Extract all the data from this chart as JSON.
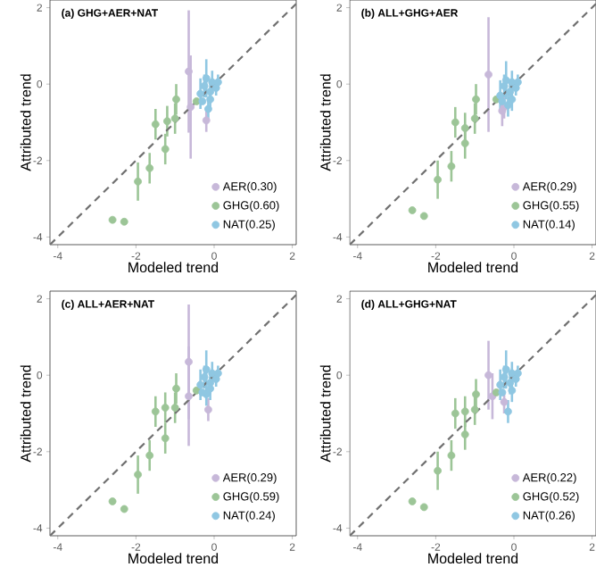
{
  "chart_data": [
    {
      "type": "scatter",
      "title": "(a) GHG+AER+NAT",
      "xlabel": "Modeled trend",
      "ylabel": "Attributed trend",
      "xlim": [
        -4.2,
        2.1
      ],
      "ylim": [
        -4.2,
        2.2
      ],
      "xticks": [
        -4,
        -2,
        0,
        2
      ],
      "yticks": [
        -4,
        -2,
        0,
        2
      ],
      "legend": "bottom right",
      "series": [
        {
          "type": "line",
          "color": "#707070",
          "line_style": "dashed",
          "marker": "none",
          "x": [
            -4.2,
            2.1
          ],
          "values": [
            -4.2,
            2.1
          ]
        },
        {
          "name": "AER(0.30)",
          "marker": "circle",
          "color": "#c7b8d9",
          "x": [
            -0.65,
            -0.6,
            -0.2
          ],
          "values": [
            0.33,
            -0.6,
            -0.95
          ],
          "errors": [
            1.6,
            1.35,
            0.3
          ]
        },
        {
          "name": "GHG(0.60)",
          "marker": "circle",
          "color": "#9cc597",
          "x": [
            -2.6,
            -2.3,
            -1.95,
            -1.65,
            -1.25,
            -1.5,
            -1.2,
            -1.0,
            -0.97,
            -0.45
          ],
          "values": [
            -3.55,
            -3.6,
            -2.55,
            -2.2,
            -1.7,
            -1.05,
            -0.97,
            -0.9,
            -0.4,
            -0.45
          ],
          "errors": [
            null,
            null,
            0.5,
            0.4,
            0.4,
            0.4,
            0.4,
            0.4,
            0.4,
            null
          ]
        },
        {
          "name": "NAT(0.25)",
          "marker": "circle",
          "color": "#8fc7e2",
          "x": [
            -0.35,
            -0.25,
            -0.2,
            -0.1,
            -0.05,
            0.05,
            0.1,
            -0.15,
            -0.1,
            -0.3
          ],
          "values": [
            -0.25,
            -0.05,
            0.15,
            -0.2,
            0.05,
            -0.1,
            0.05,
            -0.65,
            -0.4,
            -0.45
          ],
          "errors": [
            0.4,
            0.3,
            0.5,
            0.3,
            0.3,
            0.2,
            0.2,
            0.3,
            0.3,
            null
          ]
        }
      ]
    },
    {
      "type": "scatter",
      "title": "(b) ALL+GHG+AER",
      "xlabel": "Modeled trend",
      "ylabel": "Attributed trend",
      "xlim": [
        -4.2,
        2.1
      ],
      "ylim": [
        -4.2,
        2.2
      ],
      "xticks": [
        -4,
        -2,
        0,
        2
      ],
      "yticks": [
        -4,
        -2,
        0,
        2
      ],
      "legend": "bottom right",
      "series": [
        {
          "type": "line",
          "color": "#707070",
          "line_style": "dashed",
          "marker": "none",
          "x": [
            -4.2,
            2.1
          ],
          "values": [
            -4.2,
            2.1
          ]
        },
        {
          "name": "AER(0.29)",
          "marker": "circle",
          "color": "#c7b8d9",
          "x": [
            -0.65,
            -0.3,
            -0.25
          ],
          "values": [
            0.25,
            -0.7,
            -0.6
          ],
          "errors": [
            1.5,
            0.4,
            0.3
          ]
        },
        {
          "name": "GHG(0.55)",
          "marker": "circle",
          "color": "#9cc597",
          "x": [
            -2.6,
            -2.3,
            -1.95,
            -1.6,
            -1.25,
            -1.5,
            -1.25,
            -1.0,
            -0.97,
            -0.45
          ],
          "values": [
            -3.3,
            -3.45,
            -2.5,
            -2.15,
            -1.55,
            -1.0,
            -1.15,
            -0.9,
            -0.4,
            -0.4
          ],
          "errors": [
            null,
            null,
            0.5,
            0.4,
            0.4,
            0.4,
            0.4,
            0.4,
            0.4,
            null
          ]
        },
        {
          "name": "NAT(0.14)",
          "marker": "circle",
          "color": "#8fc7e2",
          "x": [
            -0.35,
            -0.25,
            -0.2,
            -0.1,
            -0.05,
            0.05,
            0.1,
            -0.15,
            -0.05,
            -0.3
          ],
          "values": [
            -0.3,
            -0.05,
            0.1,
            -0.2,
            0.05,
            -0.1,
            0.05,
            -0.55,
            -0.4,
            -0.45
          ],
          "errors": [
            0.4,
            0.3,
            0.5,
            0.3,
            0.3,
            0.2,
            0.2,
            0.3,
            0.3,
            null
          ]
        }
      ]
    },
    {
      "type": "scatter",
      "title": "(c) ALL+AER+NAT",
      "xlabel": "Modeled trend",
      "ylabel": "Attributed trend",
      "xlim": [
        -4.2,
        2.1
      ],
      "ylim": [
        -4.2,
        2.2
      ],
      "xticks": [
        -4,
        -2,
        0,
        2
      ],
      "yticks": [
        -4,
        -2,
        0,
        2
      ],
      "legend": "bottom right",
      "series": [
        {
          "type": "line",
          "color": "#707070",
          "line_style": "dashed",
          "marker": "none",
          "x": [
            -4.2,
            2.1
          ],
          "values": [
            -4.2,
            2.1
          ]
        },
        {
          "name": "AER(0.29)",
          "marker": "circle",
          "color": "#c7b8d9",
          "x": [
            -0.65,
            -0.65,
            -0.15
          ],
          "values": [
            0.35,
            -0.55,
            -0.9
          ],
          "errors": [
            1.5,
            1.3,
            0.3
          ]
        },
        {
          "name": "GHG(0.59)",
          "marker": "circle",
          "color": "#9cc597",
          "x": [
            -2.6,
            -2.3,
            -1.95,
            -1.65,
            -1.25,
            -1.5,
            -1.25,
            -1.0,
            -0.97,
            -0.45
          ],
          "values": [
            -3.3,
            -3.5,
            -2.6,
            -2.1,
            -1.65,
            -0.95,
            -0.85,
            -0.85,
            -0.35,
            -0.4
          ],
          "errors": [
            null,
            null,
            0.5,
            0.4,
            0.4,
            0.4,
            0.4,
            0.4,
            0.4,
            null
          ]
        },
        {
          "name": "NAT(0.24)",
          "marker": "circle",
          "color": "#8fc7e2",
          "x": [
            -0.35,
            -0.25,
            -0.2,
            -0.1,
            -0.05,
            0.05,
            0.1,
            -0.2,
            -0.1,
            -0.3
          ],
          "values": [
            -0.25,
            -0.05,
            0.15,
            -0.2,
            0.05,
            -0.1,
            0.05,
            -0.5,
            -0.35,
            -0.45
          ],
          "errors": [
            0.4,
            0.3,
            0.5,
            0.3,
            0.3,
            0.2,
            0.2,
            0.3,
            0.3,
            null
          ]
        }
      ]
    },
    {
      "type": "scatter",
      "title": "(d) ALL+GHG+NAT",
      "xlabel": "Modeled trend",
      "ylabel": "Attributed trend",
      "xlim": [
        -4.2,
        2.1
      ],
      "ylim": [
        -4.2,
        2.2
      ],
      "xticks": [
        -4,
        -2,
        0,
        2
      ],
      "yticks": [
        -4,
        -2,
        0,
        2
      ],
      "legend": "bottom right",
      "series": [
        {
          "type": "line",
          "color": "#707070",
          "line_style": "dashed",
          "marker": "none",
          "x": [
            -4.2,
            2.1
          ],
          "values": [
            -4.2,
            2.1
          ]
        },
        {
          "name": "AER(0.22)",
          "marker": "circle",
          "color": "#c7b8d9",
          "x": [
            -0.65,
            -0.55,
            -0.25
          ],
          "values": [
            0.0,
            -0.55,
            -0.7
          ],
          "errors": [
            0.9,
            0.6,
            0.3
          ]
        },
        {
          "name": "GHG(0.52)",
          "marker": "circle",
          "color": "#9cc597",
          "x": [
            -2.6,
            -2.3,
            -1.95,
            -1.6,
            -1.25,
            -1.5,
            -1.25,
            -1.0,
            -0.97,
            -0.45
          ],
          "values": [
            -3.3,
            -3.45,
            -2.5,
            -2.1,
            -1.55,
            -1.0,
            -0.95,
            -0.9,
            -0.5,
            -0.45
          ],
          "errors": [
            null,
            null,
            0.5,
            0.4,
            0.4,
            0.4,
            0.4,
            0.4,
            0.4,
            null
          ]
        },
        {
          "name": "NAT(0.26)",
          "marker": "circle",
          "color": "#8fc7e2",
          "x": [
            -0.35,
            -0.25,
            -0.2,
            -0.1,
            -0.05,
            0.05,
            0.1,
            -0.15,
            -0.05,
            -0.3
          ],
          "values": [
            -0.25,
            -0.05,
            0.15,
            -0.2,
            0.05,
            -0.1,
            0.05,
            -0.95,
            -0.4,
            -0.45
          ],
          "errors": [
            0.4,
            0.3,
            0.5,
            0.3,
            0.3,
            0.2,
            0.2,
            0.3,
            0.3,
            null
          ]
        }
      ]
    }
  ]
}
